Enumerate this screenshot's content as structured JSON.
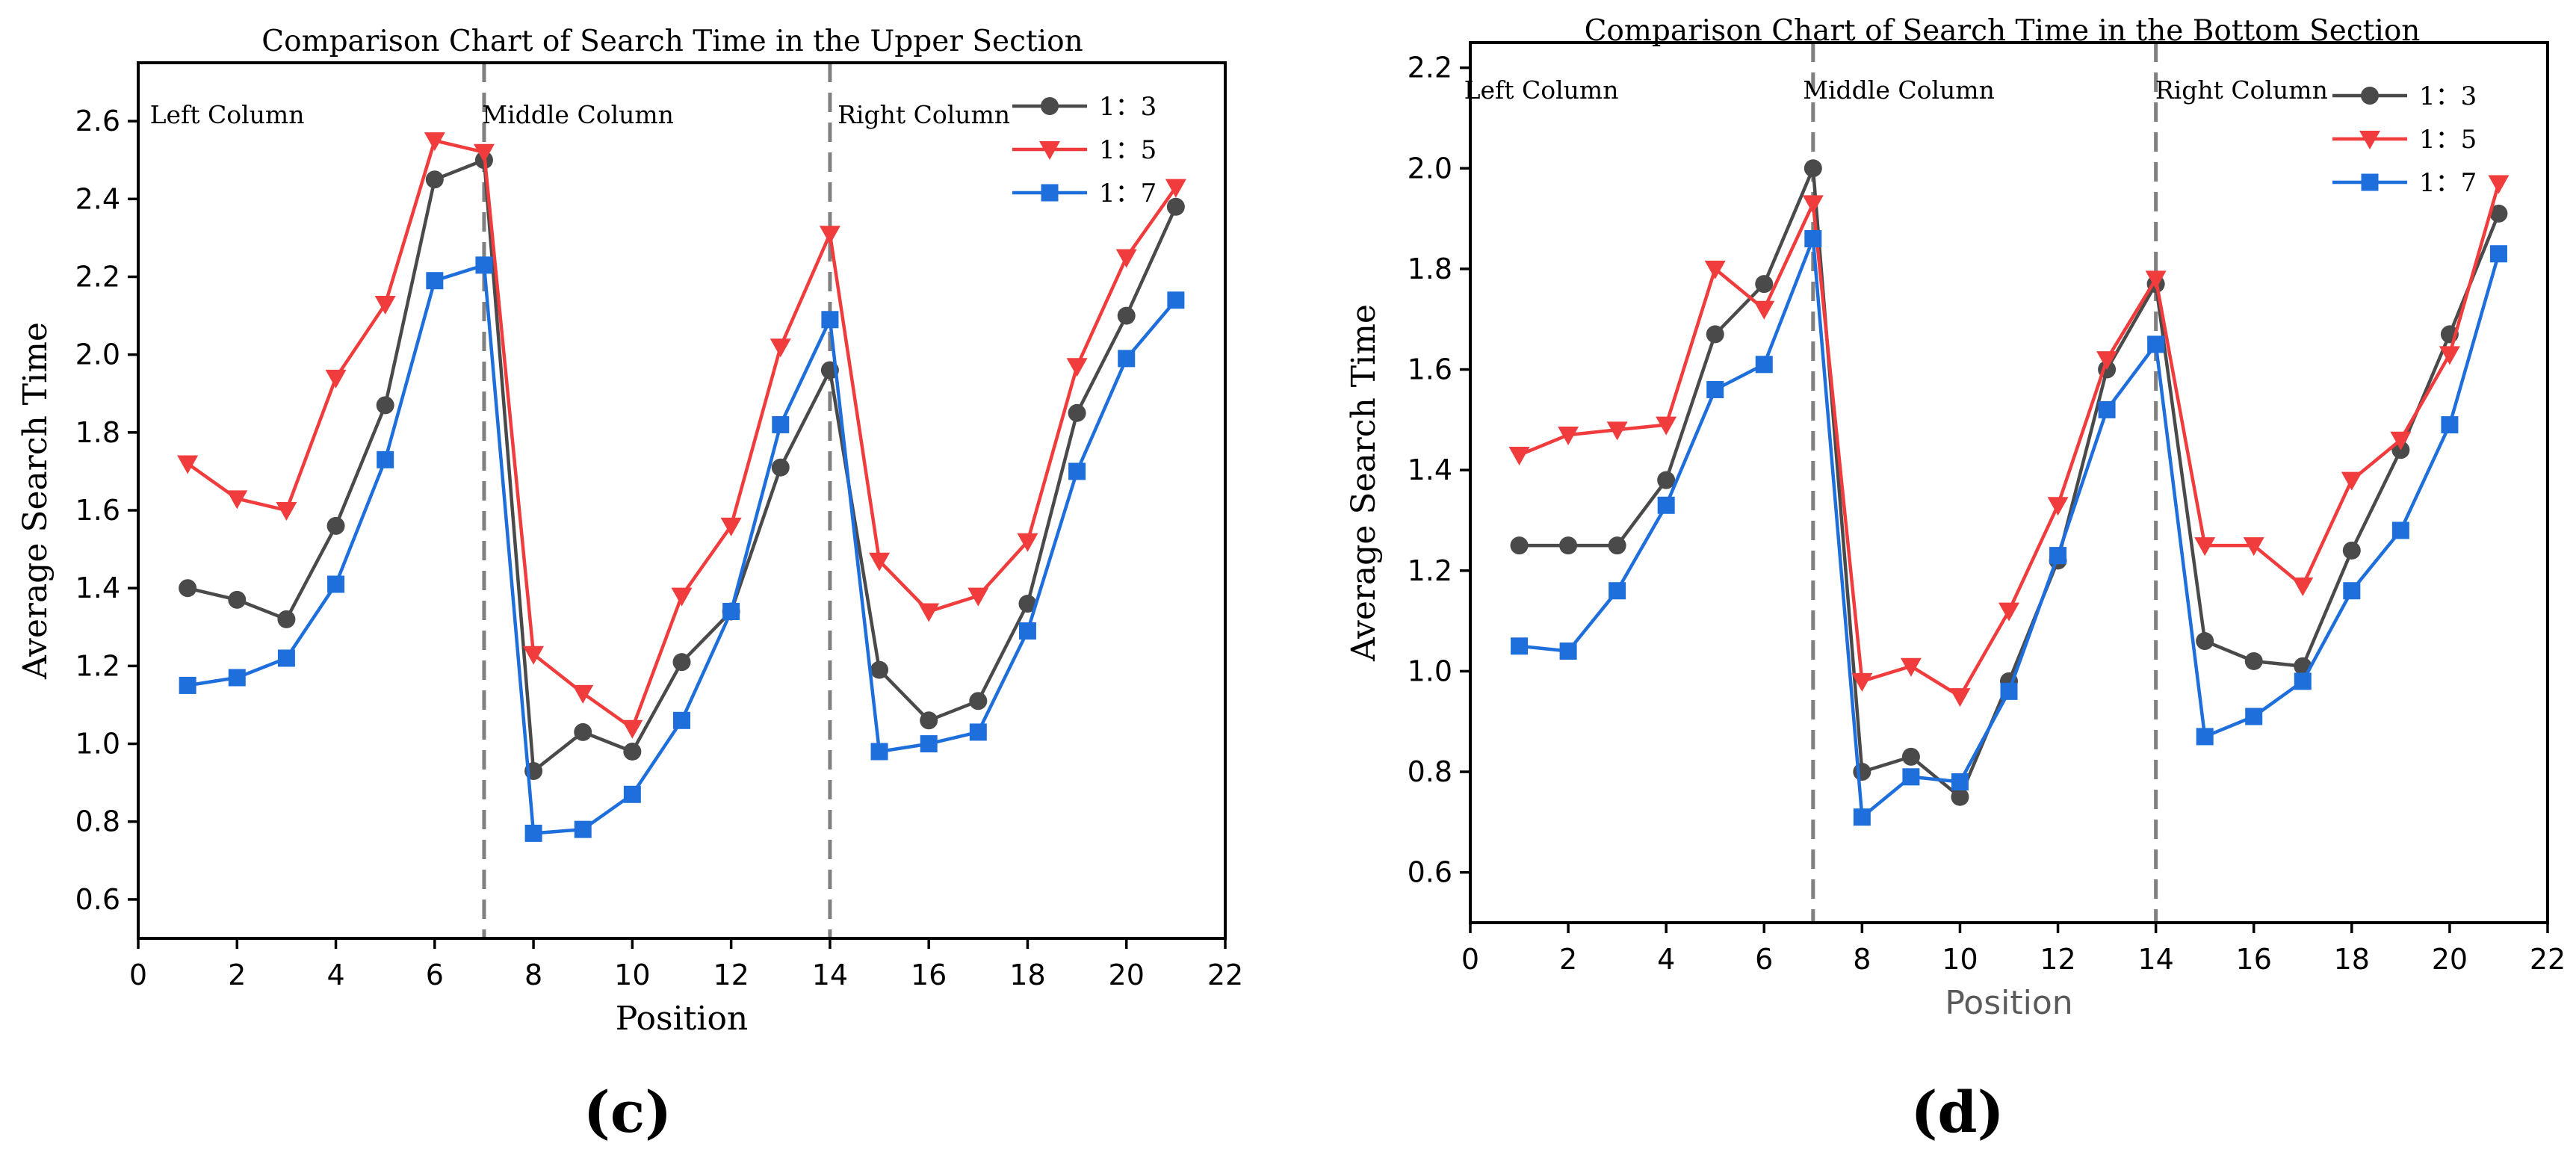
{
  "figure_labels": [
    "(c)",
    "(d)"
  ],
  "colors": {
    "series_1_3": "#4a4a4a",
    "series_1_5": "#f03c3c",
    "series_1_7": "#1e6fdc",
    "axis": "#000000",
    "divider": "#808080"
  },
  "chart_data": [
    {
      "type": "line",
      "title": "Comparison Chart of Search Time in the Upper Section",
      "xlabel": "Position",
      "ylabel": "Average Search Time",
      "xlim": [
        0,
        22
      ],
      "ylim": [
        0.5,
        2.75
      ],
      "xticks": [
        0,
        2,
        4,
        6,
        8,
        10,
        12,
        14,
        16,
        18,
        20,
        22
      ],
      "yticks": [
        0.6,
        0.8,
        1.0,
        1.2,
        1.4,
        1.6,
        1.8,
        2.0,
        2.2,
        2.4,
        2.6
      ],
      "ytick_labels": [
        "0.6",
        "0.8",
        "1.0",
        "1.2",
        "1.4",
        "1.6",
        "1.8",
        "2.0",
        "2.2",
        "2.4",
        "2.6"
      ],
      "dividers": [
        7,
        14
      ],
      "column_labels": [
        {
          "text": "Left Column",
          "x": 1.8
        },
        {
          "text": "Middle Column",
          "x": 8.9
        },
        {
          "text": "Right Column",
          "x": 15.9
        }
      ],
      "x": [
        1,
        2,
        3,
        4,
        5,
        6,
        7,
        8,
        9,
        10,
        11,
        12,
        13,
        14,
        15,
        16,
        17,
        18,
        19,
        20,
        21
      ],
      "series": [
        {
          "name": "1：3",
          "marker": "circle",
          "values": [
            1.4,
            1.37,
            1.32,
            1.56,
            1.87,
            2.45,
            2.5,
            0.93,
            1.03,
            0.98,
            1.21,
            1.34,
            1.71,
            1.96,
            1.19,
            1.06,
            1.11,
            1.36,
            1.85,
            2.1,
            2.38
          ]
        },
        {
          "name": "1：5",
          "marker": "triangle-down",
          "values": [
            1.72,
            1.63,
            1.6,
            1.94,
            2.13,
            2.55,
            2.52,
            1.23,
            1.13,
            1.04,
            1.38,
            1.56,
            2.02,
            2.31,
            1.47,
            1.34,
            1.38,
            1.52,
            1.97,
            2.25,
            2.43
          ]
        },
        {
          "name": "1：7",
          "marker": "square",
          "values": [
            1.15,
            1.17,
            1.22,
            1.41,
            1.73,
            2.19,
            2.23,
            0.77,
            0.78,
            0.87,
            1.06,
            1.34,
            1.82,
            2.09,
            0.98,
            1.0,
            1.03,
            1.29,
            1.7,
            1.99,
            2.14
          ]
        }
      ]
    },
    {
      "type": "line",
      "title": "Comparison Chart of Search Time in the Bottom Section",
      "xlabel": "Position",
      "ylabel": "Average Search Time",
      "xlim": [
        0,
        22
      ],
      "ylim": [
        0.5,
        2.25
      ],
      "xticks": [
        0,
        2,
        4,
        6,
        8,
        10,
        12,
        14,
        16,
        18,
        20,
        22
      ],
      "yticks": [
        0.6,
        0.8,
        1.0,
        1.2,
        1.4,
        1.6,
        1.8,
        2.0,
        2.2
      ],
      "ytick_labels": [
        "0.6",
        "0.8",
        "1.0",
        "1.2",
        "1.4",
        "1.6",
        "1.8",
        "2.0",
        "2.2"
      ],
      "dividers": [
        7,
        14
      ],
      "column_labels": [
        {
          "text": "Left Column",
          "x": 1.45
        },
        {
          "text": "Middle Column",
          "x": 8.75
        },
        {
          "text": "Right Column",
          "x": 15.75
        }
      ],
      "x": [
        1,
        2,
        3,
        4,
        5,
        6,
        7,
        8,
        9,
        10,
        11,
        12,
        13,
        14,
        15,
        16,
        17,
        18,
        19,
        20,
        21
      ],
      "series": [
        {
          "name": "1：3",
          "marker": "circle",
          "values": [
            1.25,
            1.25,
            1.25,
            1.38,
            1.67,
            1.77,
            2.0,
            0.8,
            0.83,
            0.75,
            0.98,
            1.22,
            1.6,
            1.77,
            1.06,
            1.02,
            1.01,
            1.24,
            1.44,
            1.67,
            1.91
          ]
        },
        {
          "name": "1：5",
          "marker": "triangle-down",
          "values": [
            1.43,
            1.47,
            1.48,
            1.49,
            1.8,
            1.72,
            1.93,
            0.98,
            1.01,
            0.95,
            1.12,
            1.33,
            1.62,
            1.78,
            1.25,
            1.25,
            1.17,
            1.38,
            1.46,
            1.63,
            1.97
          ]
        },
        {
          "name": "1：7",
          "marker": "square",
          "values": [
            1.05,
            1.04,
            1.16,
            1.33,
            1.56,
            1.61,
            1.86,
            0.71,
            0.79,
            0.78,
            0.96,
            1.23,
            1.52,
            1.65,
            0.87,
            0.91,
            0.98,
            1.16,
            1.28,
            1.49,
            1.83
          ]
        }
      ]
    }
  ]
}
